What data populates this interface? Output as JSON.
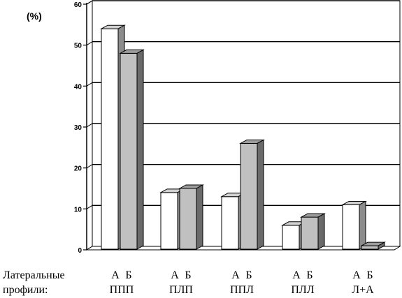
{
  "chart_data": {
    "type": "bar",
    "unit_label": "(%)",
    "row_label_1": "Латеральные",
    "row_label_2": "профили:",
    "categories": [
      "ППП",
      "ПЛП",
      "ППЛ",
      "ПЛЛ",
      "Л+А"
    ],
    "series": [
      {
        "name": "А",
        "color": "#ffffff",
        "values": [
          54,
          14,
          13,
          6,
          11
        ]
      },
      {
        "name": "Б",
        "color": "#c0c0c0",
        "values": [
          48,
          15,
          26,
          8,
          1
        ]
      }
    ],
    "ylim": [
      0,
      60
    ],
    "yticks": [
      0,
      10,
      20,
      30,
      40,
      50,
      60
    ],
    "grid": true
  }
}
